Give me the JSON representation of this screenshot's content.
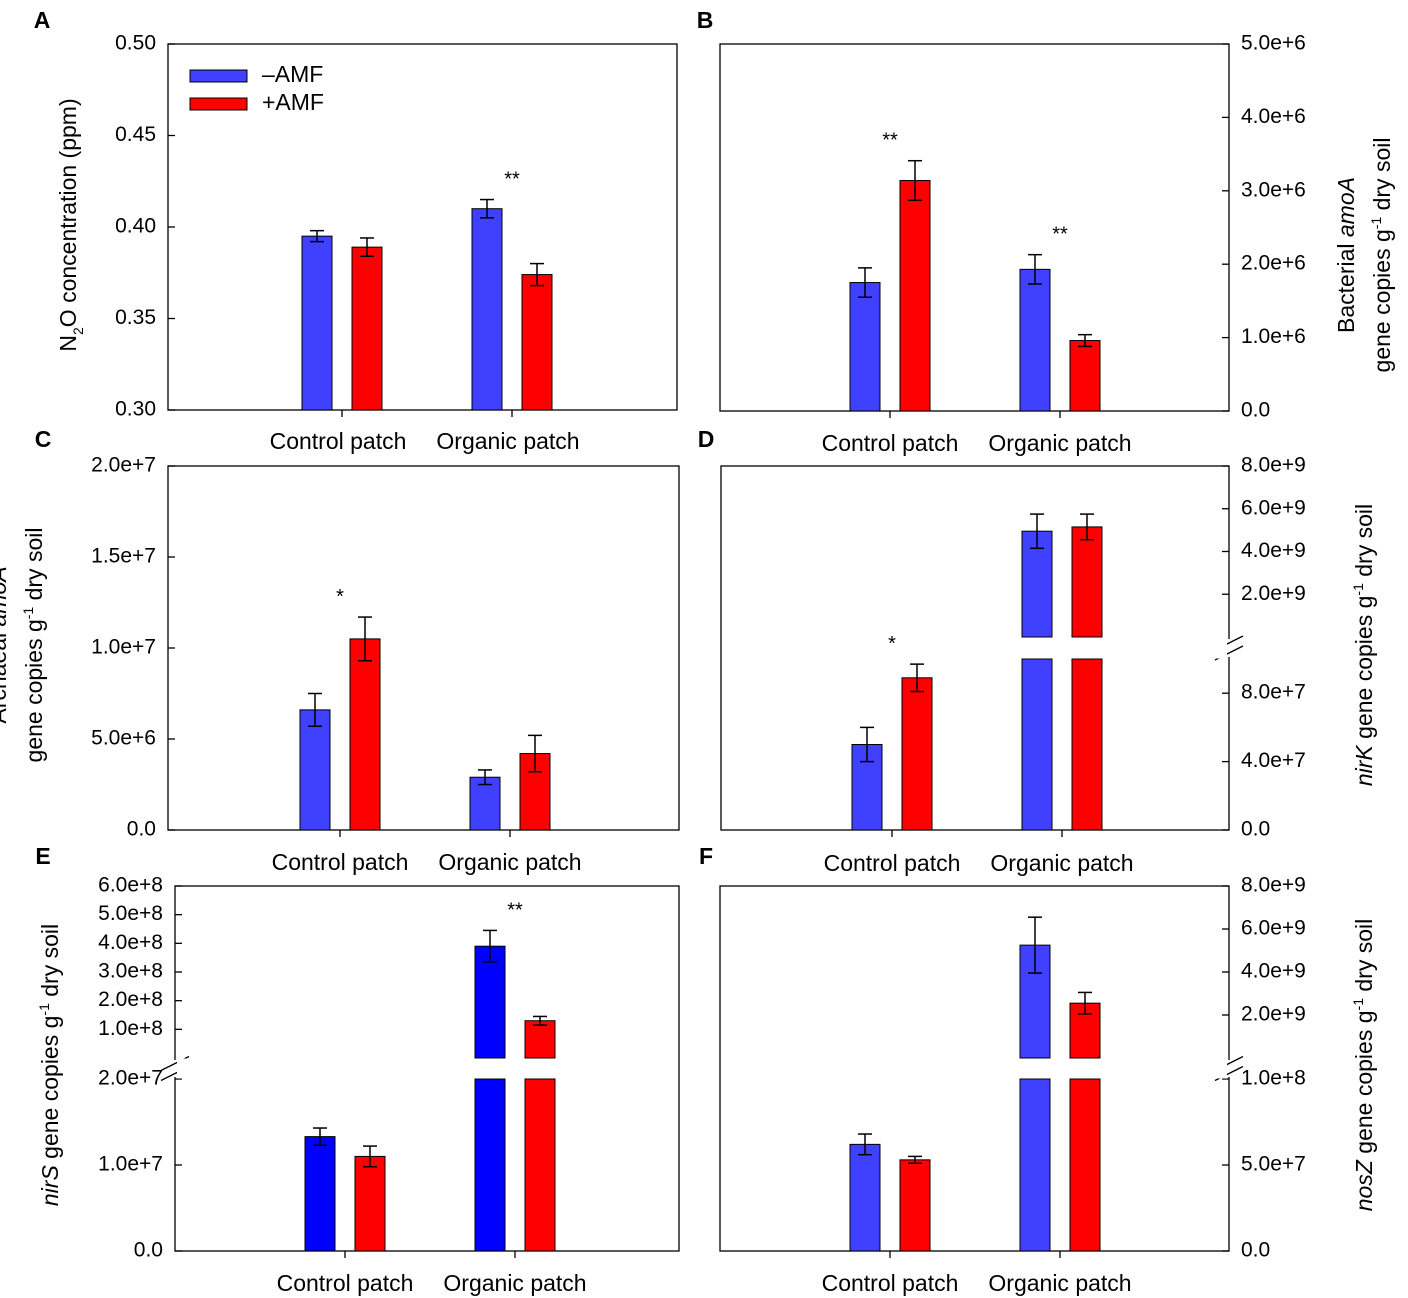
{
  "legend": [
    "–AMF",
    "+AMF"
  ],
  "colors": {
    "minus_amf": "#4040ff",
    "plus_amf": "#ff0000",
    "minus_amf_dark": "#0000ff"
  },
  "chart_data": [
    {
      "panel": "A",
      "type": "bar",
      "categories": [
        "Control patch",
        "Organic patch"
      ],
      "series": [
        {
          "name": "–AMF",
          "values": [
            0.395,
            0.41
          ],
          "errors": [
            0.003,
            0.005
          ]
        },
        {
          "name": "+AMF",
          "values": [
            0.389,
            0.374
          ],
          "errors": [
            0.005,
            0.006
          ]
        }
      ],
      "significance": [
        "",
        "**"
      ],
      "ylim": [
        0.3,
        0.5
      ],
      "yticks": [
        "0.30",
        "0.35",
        "0.40",
        "0.45",
        "0.50"
      ],
      "ylabel": {
        "pre": "N",
        "sub": "2",
        "post": "O concentration (ppm)"
      },
      "yaxis": "left",
      "legend": true
    },
    {
      "panel": "B",
      "type": "bar",
      "categories": [
        "Control patch",
        "Organic patch"
      ],
      "series": [
        {
          "name": "–AMF",
          "values": [
            1750000,
            1930000
          ],
          "errors": [
            200000,
            200000
          ]
        },
        {
          "name": "+AMF",
          "values": [
            3140000,
            960000
          ],
          "errors": [
            270000,
            80000
          ]
        }
      ],
      "significance": [
        "**",
        "**"
      ],
      "ylim": [
        0,
        5000000
      ],
      "yticks": [
        "0.0",
        "1.0e+6",
        "2.0e+6",
        "3.0e+6",
        "4.0e+6",
        "5.0e+6"
      ],
      "ylabel": {
        "line1_pre": "Bacterial ",
        "line1_it": "amoA",
        "line2_pre": "gene copies g",
        "line2_sup": "-1",
        "line2_post": " dry soil"
      },
      "yaxis": "right"
    },
    {
      "panel": "C",
      "type": "bar",
      "categories": [
        "Control patch",
        "Organic patch"
      ],
      "series": [
        {
          "name": "–AMF",
          "values": [
            6600000,
            2900000
          ],
          "errors": [
            900000,
            400000
          ]
        },
        {
          "name": "+AMF",
          "values": [
            10500000,
            4200000
          ],
          "errors": [
            1200000,
            1000000
          ]
        }
      ],
      "significance": [
        "*",
        ""
      ],
      "ylim": [
        0,
        20000000
      ],
      "yticks": [
        "0.0",
        "5.0e+6",
        "1.0e+7",
        "1.5e+7",
        "2.0e+7"
      ],
      "ylabel": {
        "line1_pre": "Archaeal  ",
        "line1_it": "amoA",
        "line2_pre": "gene copies g",
        "line2_sup": "-1",
        "line2_post": " dry soil"
      },
      "yaxis": "left"
    },
    {
      "panel": "D",
      "type": "bar",
      "broken_axis": true,
      "categories": [
        "Control patch",
        "Organic patch"
      ],
      "series": [
        {
          "name": "–AMF",
          "values": [
            50000000,
            4950000000
          ],
          "errors": [
            10000000,
            800000000
          ]
        },
        {
          "name": "+AMF",
          "values": [
            89000000,
            5150000000
          ],
          "errors": [
            8000000,
            600000000
          ]
        }
      ],
      "significance": [
        "*",
        ""
      ],
      "lower_ylim": [
        0,
        100000000
      ],
      "upper_ylim": [
        0,
        8000000000
      ],
      "lower_yticks": [
        "0.0",
        "4.0e+7",
        "8.0e+7"
      ],
      "upper_yticks": [
        "2.0e+9",
        "4.0e+9",
        "6.0e+9",
        "8.0e+9"
      ],
      "ylabel": {
        "it": "nirK",
        "pre": " gene copies g",
        "sup": "-1",
        "post": " dry soil"
      },
      "yaxis": "right"
    },
    {
      "panel": "E",
      "type": "bar",
      "broken_axis": true,
      "categories": [
        "Control patch",
        "Organic patch"
      ],
      "series": [
        {
          "name": "–AMF",
          "values": [
            13300000,
            390000000
          ],
          "errors": [
            1000000,
            55000000
          ]
        },
        {
          "name": "+AMF",
          "values": [
            11000000,
            130000000
          ],
          "errors": [
            1200000,
            15000000
          ]
        }
      ],
      "significance": [
        "",
        "**"
      ],
      "lower_ylim": [
        0,
        20000000
      ],
      "upper_ylim": [
        0,
        600000000
      ],
      "lower_yticks": [
        "0.0",
        "1.0e+7",
        "2.0e+7"
      ],
      "upper_yticks": [
        "1.0e+8",
        "2.0e+8",
        "3.0e+8",
        "4.0e+8",
        "5.0e+8",
        "6.0e+8"
      ],
      "ylabel": {
        "it": "nirS",
        "pre": " gene copies g",
        "sup": "-1",
        "post": " dry soil"
      },
      "yaxis": "left"
    },
    {
      "panel": "F",
      "type": "bar",
      "broken_axis": true,
      "categories": [
        "Control patch",
        "Organic patch"
      ],
      "series": [
        {
          "name": "–AMF",
          "values": [
            62000000,
            5250000000
          ],
          "errors": [
            6000000,
            1300000000
          ]
        },
        {
          "name": "+AMF",
          "values": [
            53000000,
            2550000000
          ],
          "errors": [
            2000000,
            500000000
          ]
        }
      ],
      "significance": [
        "",
        ""
      ],
      "lower_ylim": [
        0,
        100000000
      ],
      "upper_ylim": [
        0,
        8000000000
      ],
      "lower_yticks": [
        "0.0",
        "5.0e+7",
        "1.0e+8"
      ],
      "upper_yticks": [
        "2.0e+9",
        "4.0e+9",
        "6.0e+9",
        "8.0e+9"
      ],
      "ylabel": {
        "it": "nosZ",
        "pre": " gene copies g",
        "sup": "-1",
        "post": " dry soil"
      },
      "yaxis": "right"
    }
  ]
}
